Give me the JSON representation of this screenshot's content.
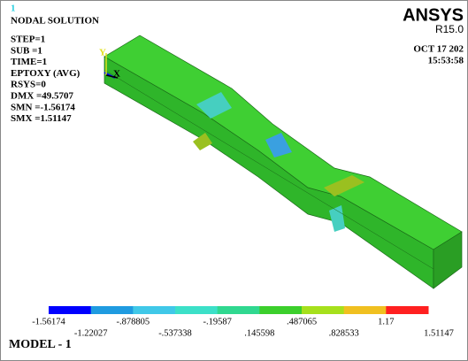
{
  "header": {
    "index": "1",
    "title": "NODAL SOLUTION",
    "lines": [
      "STEP=1",
      "SUB =1",
      "TIME=1",
      "EPTOXY   (AVG)",
      "RSYS=0",
      "DMX =49.5707",
      "SMN =-1.56174",
      "SMX =1.51147"
    ]
  },
  "brand": {
    "name": "ANSYS",
    "version": "R15.0",
    "date": "OCT 17 202",
    "time": "15:53:58"
  },
  "axes": {
    "y": "Y",
    "x": "X"
  },
  "legend": {
    "colors": [
      "#0000ff",
      "#1f9be0",
      "#40c8e8",
      "#3ce0c8",
      "#30d890",
      "#3ccf2c",
      "#a6e01c",
      "#f0c020",
      "#ff2020"
    ],
    "labels": [
      "-1.56174",
      "-1.22027",
      "-.878805",
      "-.537338",
      "-.19587",
      ".145598",
      ".487065",
      ".828533",
      "1.17",
      "1.51147"
    ]
  },
  "footer": "MODEL - 1"
}
